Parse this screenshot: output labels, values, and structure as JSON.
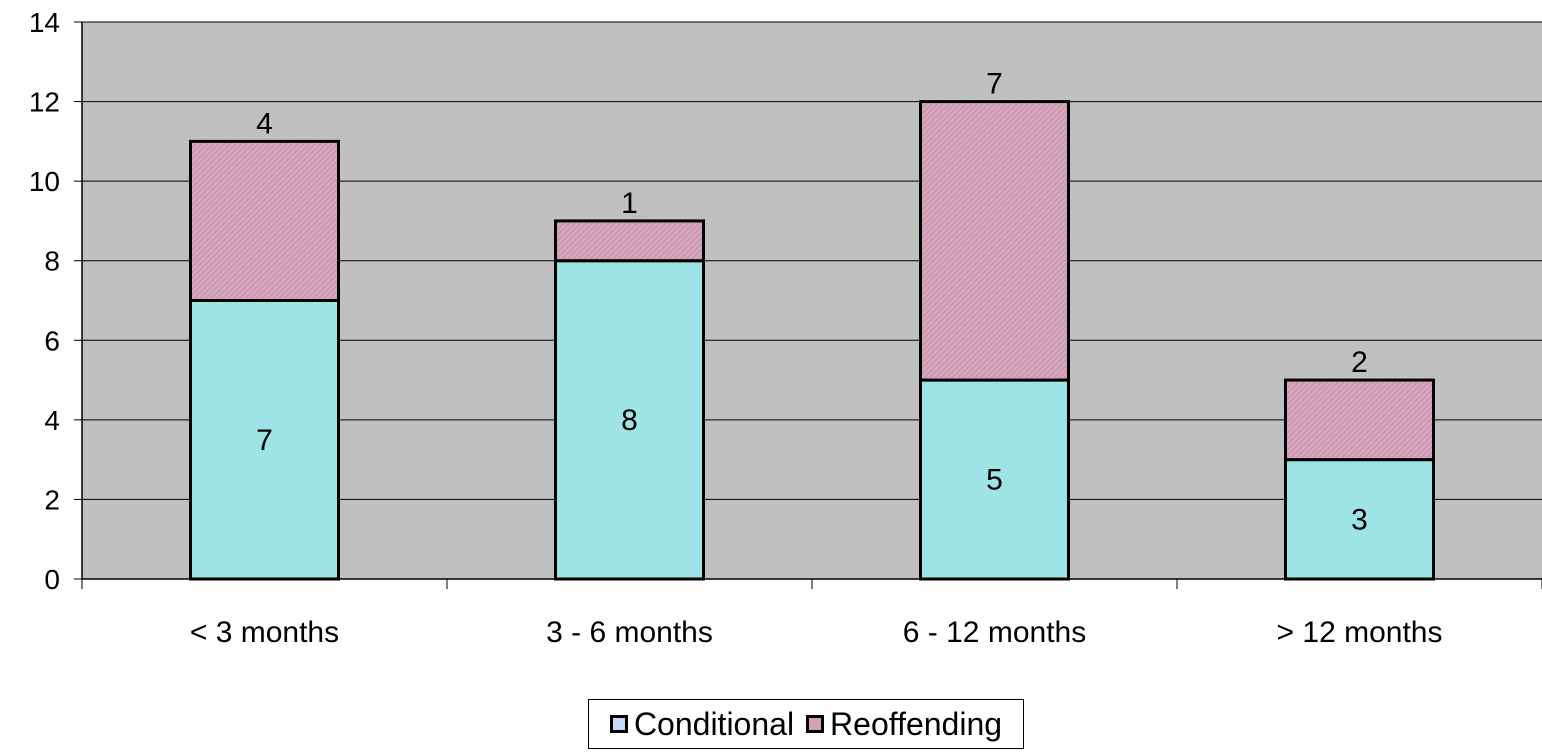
{
  "chart_data": {
    "type": "bar",
    "stacked": true,
    "categories": [
      "< 3 months",
      "3 - 6 months",
      "6 - 12 months",
      "> 12 months"
    ],
    "series": [
      {
        "name": "Conditional",
        "values": [
          7,
          8,
          5,
          3
        ],
        "color": "#9ee3e6"
      },
      {
        "name": "Reoffending",
        "values": [
          4,
          1,
          7,
          2
        ],
        "color": "#d4a0b8"
      }
    ],
    "ylim": [
      0,
      14
    ],
    "yticks": [
      "0",
      "2",
      "4",
      "6",
      "8",
      "10",
      "12",
      "14"
    ],
    "grid": true,
    "plot_background": "#c0c0c0",
    "legend_position": "bottom",
    "legend_swatch_colors": [
      "#c9d9f5",
      "#d4a0b8"
    ]
  }
}
